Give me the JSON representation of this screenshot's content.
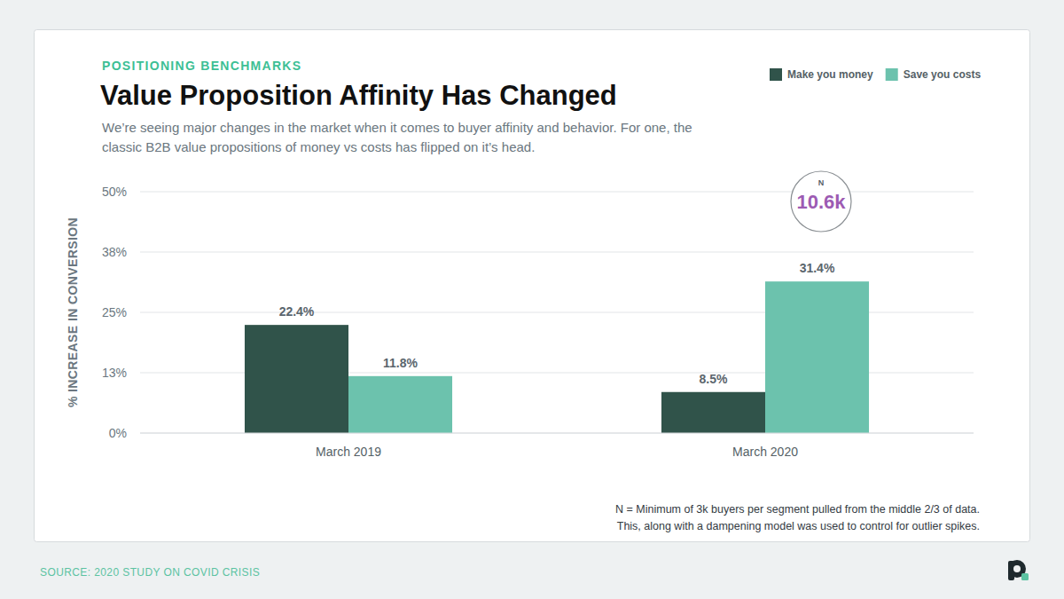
{
  "chart_data": {
    "type": "bar",
    "kicker": "POSITIONING BENCHMARKS",
    "title": "Value Proposition Affinity Has Changed",
    "subtitle": [
      "We’re seeing major changes in the market when it comes to buyer affinity and behavior. For one, the",
      "classic B2B value propositions of money vs costs has flipped on it’s head."
    ],
    "ylabel": "% INCREASE IN CONVERSION",
    "categories": [
      "March 2019",
      "March 2020"
    ],
    "series": [
      {
        "name": "Make you money",
        "color": "#30534a",
        "values": [
          22.4,
          8.5
        ],
        "value_labels": [
          "22.4%",
          "8.5%"
        ]
      },
      {
        "name": "Save you costs",
        "color": "#6cc2ad",
        "values": [
          11.8,
          31.4
        ],
        "value_labels": [
          "11.8%",
          "31.4%"
        ]
      }
    ],
    "ylim": [
      0,
      50
    ],
    "yticks": [
      {
        "value": 0,
        "label": "0%"
      },
      {
        "value": 12.5,
        "label": "13%"
      },
      {
        "value": 25,
        "label": "25%"
      },
      {
        "value": 37.5,
        "label": "38%"
      },
      {
        "value": 50,
        "label": "50%"
      }
    ],
    "grid": true,
    "legend": "top-right",
    "data_labels": true,
    "annotation": {
      "title": "N",
      "text": "10.6k"
    },
    "footnote": [
      "N = Minimum of 3k buyers per segment pulled from the middle 2/3 of data.",
      "This, along with a dampening model was used to control for outlier spikes."
    ],
    "source": "SOURCE: 2020 STUDY ON COVID CRISIS"
  }
}
